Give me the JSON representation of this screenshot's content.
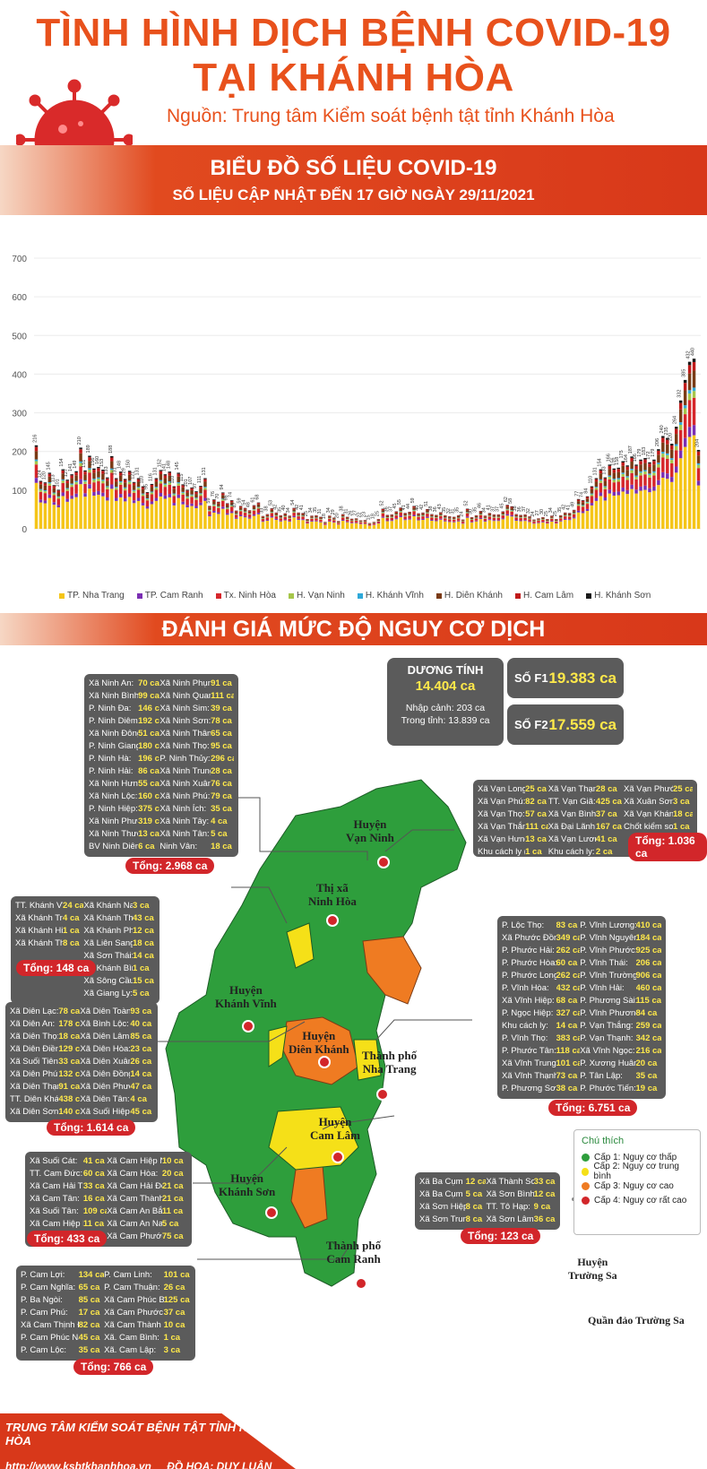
{
  "header": {
    "title_line1": "TÌNH HÌNH DỊCH BỆNH COVID-19",
    "title_line2": "TẠI KHÁNH HÒA",
    "source": "Nguồn: Trung tâm Kiểm soát bệnh tật tỉnh Khánh Hòa"
  },
  "banner1": {
    "title": "BIỂU ĐỒ SỐ LIỆU COVID-19",
    "subtitle": "SỐ LIỆU CẬP NHẬT ĐẾN 17 GIỜ NGÀY 29/11/2021"
  },
  "chart_data": {
    "type": "bar",
    "stacked": true,
    "ylim": [
      0,
      700
    ],
    "yticks": [
      0,
      100,
      200,
      300,
      400,
      500,
      600,
      700
    ],
    "grid": true,
    "legend_position": "bottom",
    "totals_labels": [
      216,
      124,
      120,
      145,
      113,
      101,
      154,
      127,
      141,
      149,
      210,
      151,
      189,
      156,
      160,
      153,
      133,
      188,
      131,
      148,
      129,
      150,
      121,
      131,
      110,
      95,
      116,
      131,
      152,
      141,
      148,
      110,
      145,
      115,
      101,
      107,
      97,
      111,
      131,
      59,
      76,
      70,
      94,
      66,
      74,
      47,
      59,
      54,
      48,
      61,
      68,
      33,
      38,
      53,
      42,
      35,
      40,
      34,
      54,
      42,
      41,
      25,
      34,
      35,
      31,
      18,
      34,
      29,
      20,
      38,
      31,
      26,
      27,
      22,
      23,
      15,
      18,
      25,
      52,
      36,
      37,
      45,
      55,
      41,
      44,
      59,
      40,
      42,
      51,
      38,
      36,
      43,
      35,
      32,
      31,
      35,
      24,
      52,
      30,
      35,
      46,
      34,
      41,
      37,
      37,
      45,
      62,
      58,
      38,
      36,
      37,
      32,
      24,
      27,
      30,
      25,
      34,
      25,
      35,
      42,
      41,
      49,
      77,
      74,
      84,
      110,
      131,
      154,
      133,
      166,
      156,
      158,
      175,
      164,
      187,
      166,
      179,
      183,
      172,
      179,
      206,
      240,
      235,
      220,
      264,
      332,
      385,
      432,
      440,
      204
    ],
    "series": [
      {
        "name": "TP. Nha Trang",
        "color": "#f5c518"
      },
      {
        "name": "TP. Cam Ranh",
        "color": "#7b2fb3"
      },
      {
        "name": "Tx. Ninh Hòa",
        "color": "#d6262b"
      },
      {
        "name": "H. Vạn Ninh",
        "color": "#a6c64a"
      },
      {
        "name": "H. Khánh Vĩnh",
        "color": "#2fa9d9"
      },
      {
        "name": "H. Diên Khánh",
        "color": "#7a3b16"
      },
      {
        "name": "H. Cam Lâm",
        "color": "#c01a1a"
      },
      {
        "name": "H. Khánh Sơn",
        "color": "#1a1a1a"
      }
    ]
  },
  "banner2": {
    "title": "ĐÁNH GIÁ MỨC ĐỘ NGUY CƠ DỊCH"
  },
  "stats": {
    "positive_label": "DƯƠNG TÍNH",
    "positive_value": "14.404 ca",
    "imported": "Nhập cảnh: 203 ca",
    "local": "Trong tỉnh: 13.839 ca",
    "f1_label": "SỐ F1",
    "f1_value": "19.383 ca",
    "f2_label": "SỐ F2",
    "f2_value": "17.559 ca"
  },
  "map_labels": [
    {
      "id": "van-ninh",
      "line1": "Huyện",
      "line2": "Vạn Ninh"
    },
    {
      "id": "ninh-hoa",
      "line1": "Thị xã",
      "line2": "Ninh Hòa"
    },
    {
      "id": "khanh-vinh",
      "line1": "Huyện",
      "line2": "Khánh Vĩnh"
    },
    {
      "id": "dien-khanh",
      "line1": "Huyện",
      "line2": "Diên Khánh"
    },
    {
      "id": "nha-trang",
      "line1": "Thành phố",
      "line2": "Nha Trang"
    },
    {
      "id": "cam-lam",
      "line1": "Huyện",
      "line2": "Cam Lâm"
    },
    {
      "id": "khanh-son",
      "line1": "Huyện",
      "line2": "Khánh Sơn"
    },
    {
      "id": "cam-ranh",
      "line1": "Thành phố",
      "line2": "Cam Ranh"
    },
    {
      "id": "truong-sa",
      "line1": "Huyện",
      "line2": "Trường Sa"
    }
  ],
  "truong_sa_note": "Quần đảo Trường Sa",
  "legend_risk": {
    "title": "Chú thích",
    "items": [
      {
        "label": "Cấp 1: Nguy cơ thấp",
        "color": "#2e9e3c"
      },
      {
        "label": "Cấp 2: Nguy cơ trung bình",
        "color": "#f5e018"
      },
      {
        "label": "Cấp 3: Nguy cơ cao",
        "color": "#ef7b22"
      },
      {
        "label": "Cấp 4: Nguy cơ rất cao",
        "color": "#d2262a"
      }
    ]
  },
  "boxes": {
    "ninh_hoa": {
      "rows": [
        [
          "Xã Ninh An:",
          "70 ca",
          "Xã Ninh Phụng:",
          "91 ca"
        ],
        [
          "Xã Ninh Bình:",
          "99 ca",
          "Xã Ninh Quang:",
          "111 ca"
        ],
        [
          "P. Ninh Đa:",
          "146 ca",
          "Xã Ninh Sim:",
          "39 ca"
        ],
        [
          "P. Ninh Diêm:",
          "192 ca",
          "Xã Ninh Sơn:",
          "78 ca"
        ],
        [
          "Xã Ninh Đông:",
          "51 ca",
          "Xã Ninh Thân:",
          "65 ca"
        ],
        [
          "P. Ninh Giang:",
          "180 ca",
          "Xã Ninh Thọ:",
          "95 ca"
        ],
        [
          "P. Ninh Hà:",
          "196 ca",
          "P. Ninh Thủy:",
          "296 ca"
        ],
        [
          "P. Ninh Hải:",
          "86 ca",
          "Xã Ninh Trung:",
          "28 ca"
        ],
        [
          "Xã Ninh Hưng:",
          "55 ca",
          "Xã Ninh Xuân:",
          "76 ca"
        ],
        [
          "Xã Ninh Lộc:",
          "160 ca",
          "Xã Ninh Phú:",
          "79 ca"
        ],
        [
          "P. Ninh Hiệp:",
          "375 ca",
          "Xã Ninh Ích:",
          "35 ca"
        ],
        [
          "Xã Ninh Phước:",
          "319 ca",
          "Xã Ninh Tây:",
          "4 ca"
        ],
        [
          "Xã Ninh Thượng:",
          "13 ca",
          "Xã Ninh Tân:",
          "5 ca"
        ],
        [
          "BV Ninh Diêm:",
          "6 ca",
          "Ninh Vân:",
          "18 ca"
        ]
      ],
      "total": "Tổng: 2.968 ca"
    },
    "van_ninh": {
      "rows": [
        [
          "Xã Vạn Long:",
          "25 ca",
          "Xã Vạn Thạnh:",
          "28 ca",
          "Xã Vạn Phước:",
          "25 ca"
        ],
        [
          "Xã Vạn Phú:",
          "82 ca",
          "TT. Vạn Giã:",
          "425 ca",
          "Xã Xuân Sơn:",
          "3 ca"
        ],
        [
          "Xã Vạn Thọ:",
          "57 ca",
          "Xã Vạn Bình:",
          "37 ca",
          "Xã Vạn Khánh:",
          "18 ca"
        ],
        [
          "Xã Vạn Thắng:",
          "111 ca",
          "Xã Đại Lãnh:",
          "167 ca",
          "Chốt kiểm soát:",
          "1 ca"
        ],
        [
          "Xã Vạn Hưng:",
          "13 ca",
          "Xã Vạn Lương:",
          "41 ca",
          "",
          ""
        ],
        [
          "Khu cách ly (ngoại tỉnh):",
          "1 ca",
          "Khu cách ly:",
          "2 ca",
          "",
          ""
        ]
      ],
      "total": "Tổng: 1.036 ca"
    },
    "khanh_vinh": {
      "rows": [
        [
          "TT. Khánh Vĩnh:",
          "24 ca",
          "Xã Khánh Nam:",
          "3 ca"
        ],
        [
          "Xã Khánh Trung:",
          "4 ca",
          "Xã Khánh Thành:",
          "43 ca"
        ],
        [
          "Xã Khánh Hiệp:",
          "1 ca",
          "Xã Khánh Phú:",
          "12 ca"
        ],
        [
          "Xã Khánh Thượng:",
          "8 ca",
          "Xã Liên Sang:",
          "18 ca"
        ],
        [
          "",
          "",
          "Xã Sơn Thái:",
          "14 ca"
        ],
        [
          "",
          "",
          "Xã Khánh Bình:",
          "1 ca"
        ],
        [
          "",
          "",
          "Xã Sông Cầu:",
          "15 ca"
        ],
        [
          "",
          "",
          "Xã Giang Ly:",
          "5 ca"
        ]
      ],
      "total": "Tổng: 148 ca"
    },
    "nha_trang": {
      "rows": [
        [
          "P. Lộc Thọ:",
          "83 ca",
          "P. Vĩnh Lương:",
          "410 ca"
        ],
        [
          "Xã Phước Đồng:",
          "349 ca",
          "P. Vĩnh Nguyên:",
          "184 ca"
        ],
        [
          "P. Phước Hải:",
          "262 ca",
          "P. Vĩnh Phước:",
          "925 ca"
        ],
        [
          "P. Phước Hòa:",
          "60 ca",
          "P. Vĩnh Thái:",
          "206 ca"
        ],
        [
          "P. Phước Long:",
          "262 ca",
          "P. Vĩnh Trường:",
          "906 ca"
        ],
        [
          "P. Vĩnh Hòa:",
          "432 ca",
          "P. Vĩnh Hải:",
          "460 ca"
        ],
        [
          "Xã Vĩnh Hiệp:",
          "68 ca",
          "P. Phương Sài:",
          "115 ca"
        ],
        [
          "P. Ngọc Hiệp:",
          "327 ca",
          "P. Vĩnh Phương:",
          "84 ca"
        ],
        [
          "Khu cách ly:",
          "14 ca",
          "P. Vạn Thắng:",
          "259 ca"
        ],
        [
          "P. Vĩnh Thọ:",
          "383 ca",
          "P. Vạn Thạnh:",
          "342 ca"
        ],
        [
          "P. Phước Tân:",
          "118 ca",
          "Xã Vĩnh Ngọc:",
          "216 ca"
        ],
        [
          "Xã Vĩnh Trung:",
          "101 ca",
          "P. Xương Huân:",
          "20 ca"
        ],
        [
          "Xã Vĩnh Thạnh:",
          "73 ca",
          "P. Tân Lập:",
          "35 ca"
        ],
        [
          "P. Phương Sơn:",
          "38 ca",
          "P. Phước Tiến:",
          "19 ca"
        ]
      ],
      "total": "Tổng: 6.751 ca"
    },
    "dien_khanh": {
      "rows": [
        [
          "Xã Diên Lạc:",
          "78 ca",
          "Xã Diên Toàn:",
          "93 ca"
        ],
        [
          "Xã Diên An:",
          "178 ca",
          "Xã Bình Lộc:",
          "40 ca"
        ],
        [
          "Xã Diên Thọ:",
          "18 ca",
          "Xã Diên Lâm:",
          "85 ca"
        ],
        [
          "Xã Diên Điền:",
          "129 ca",
          "Xã Diên Hòa:",
          "23 ca"
        ],
        [
          "Xã Suối Tiên:",
          "33 ca",
          "Xã Diên Xuân:",
          "26 ca"
        ],
        [
          "Xã Diên Phú:",
          "132 ca",
          "Xã Diên Đồng:",
          "14 ca"
        ],
        [
          "Xã Diên Thạnh:",
          "91 ca",
          "Xã Diên Phước:",
          "47 ca"
        ],
        [
          "TT. Diên Khánh:",
          "438 ca",
          "Xã Diên Tân:",
          "4 ca"
        ],
        [
          "Xã Diên Sơn:",
          "140 ca",
          "Xã Suối Hiệp:",
          "45 ca"
        ]
      ],
      "total": "Tổng: 1.614 ca"
    },
    "cam_lam": {
      "rows": [
        [
          "Xã Suối Cát:",
          "41 ca",
          "Xã Cam Hiệp Nam:",
          "10 ca"
        ],
        [
          "TT. Cam Đức:",
          "60 ca",
          "Xã Cam Hòa:",
          "20 ca"
        ],
        [
          "Xã Cam Hải Tây:",
          "33 ca",
          "Xã Cam Hải Đông:",
          "21 ca"
        ],
        [
          "Xã Cam Tân:",
          "16 ca",
          "Xã Cam Thành Bắc:",
          "21 ca"
        ],
        [
          "Xã Suối Tân:",
          "109 ca",
          "Xã Cam An Bắc:",
          "11 ca"
        ],
        [
          "Xã Cam Hiệp Bắc:",
          "11 ca",
          "Xã Cam An Nam:",
          "5 ca"
        ],
        [
          "",
          "",
          "Xã Cam Phước Tây:",
          "75 ca"
        ]
      ],
      "total": "Tổng: 433 ca"
    },
    "khanh_son": {
      "rows": [
        [
          "Xã Ba Cụm Bắc:",
          "12 ca",
          "Xã Thành Sơn:",
          "33 ca"
        ],
        [
          "Xã Ba Cụm Nam:",
          "5 ca",
          "Xã Sơn Bình:",
          "12 ca"
        ],
        [
          "Xã Sơn Hiệp:",
          "8 ca",
          "TT. Tô Hạp:",
          "9 ca"
        ],
        [
          "Xã Sơn Trung:",
          "8 ca",
          "Xã Sơn Lâm:",
          "36 ca"
        ]
      ],
      "total": "Tổng: 123 ca"
    },
    "cam_ranh": {
      "rows": [
        [
          "P. Cam Lợi:",
          "134 ca",
          "P. Cam Linh:",
          "101 ca"
        ],
        [
          "P. Cam Nghĩa:",
          "65 ca",
          "P. Cam Thuận:",
          "26 ca"
        ],
        [
          "P. Ba Ngòi:",
          "85 ca",
          "Xã Cam Phúc Bắc:",
          "125 ca"
        ],
        [
          "P. Cam Phú:",
          "17 ca",
          "Xã Cam Phước Đông:",
          "37 ca"
        ],
        [
          "Xã Cam Thịnh Đông:",
          "82 ca",
          "Xã Cam Thành Nam:",
          "10 ca"
        ],
        [
          "P. Cam Phúc Nam:",
          "45 ca",
          "Xã. Cam Bình:",
          "1 ca"
        ],
        [
          "P. Cam Lộc:",
          "35 ca",
          "Xã. Cam Lập:",
          "3 ca"
        ]
      ],
      "total": "Tổng: 766 ca"
    }
  },
  "footer": {
    "org": "TRUNG TÂM KIỂM SOÁT BỆNH TẬT TỈNH KHÁNH HÒA",
    "website": "http://www.ksbtkhanhhoa.vn",
    "design": "ĐỒ HỌA: DUY LUÂN"
  }
}
